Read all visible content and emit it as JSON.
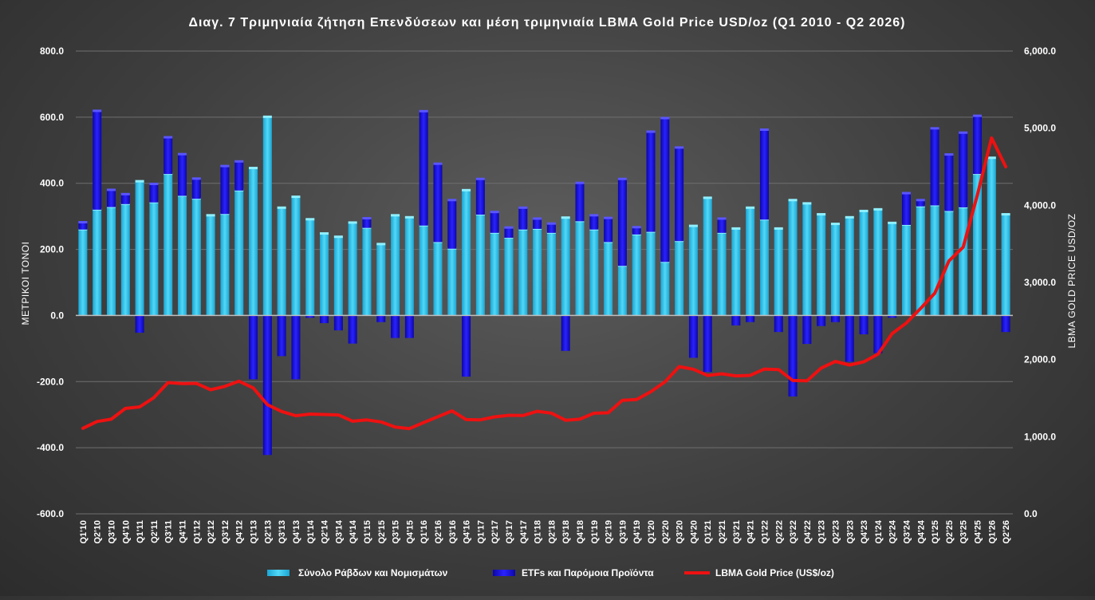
{
  "chart_data": {
    "type": "bar",
    "title": "Διαγ. 7  Τριμηνιαία ζήτηση Επενδύσεων και μέση τριμηνιαία LBMA Gold Price USD/oz (Q1 2010 - Q2 2026)",
    "ylabel": "ΜΕΤΡΙΚΟΙ ΤΟΝΟΙ",
    "y2label": "LBMA GOLD PRICE USD/OZ",
    "ylim": [
      -600,
      800
    ],
    "y2lim": [
      0,
      6000
    ],
    "yticks": [
      "800.0",
      "600.0",
      "400.0",
      "200.0",
      "0.0",
      "-200.0",
      "-400.0",
      "-600.0"
    ],
    "y2ticks": [
      "6,000.0",
      "5,000.0",
      "4,000.0",
      "3,000.0",
      "2,000.0",
      "1,000.0",
      "0.0"
    ],
    "grid": true,
    "legend_position": "bottom",
    "categories": [
      "Q1'10",
      "Q2'10",
      "Q3'10",
      "Q4'10",
      "Q1'11",
      "Q2'11",
      "Q3'11",
      "Q4'11",
      "Q1'12",
      "Q2'12",
      "Q3'12",
      "Q4'12",
      "Q1'13",
      "Q2'13",
      "Q3'13",
      "Q4'13",
      "Q1'14",
      "Q2'14",
      "Q3'14",
      "Q4'14",
      "Q1'15",
      "Q2'15",
      "Q3'15",
      "Q4'15",
      "Q1'16",
      "Q2'16",
      "Q3'16",
      "Q4'16",
      "Q1'17",
      "Q2'17",
      "Q3'17",
      "Q4'17",
      "Q1'18",
      "Q2'18",
      "Q3'18",
      "Q4'18",
      "Q1'19",
      "Q2'19",
      "Q3'19",
      "Q4'19",
      "Q1'20",
      "Q2'20",
      "Q3'20",
      "Q4'20",
      "Q1'21",
      "Q2'21",
      "Q3'21",
      "Q4'21",
      "Q1'22",
      "Q2'22",
      "Q3'22",
      "Q4'22",
      "Q1'23",
      "Q2'23",
      "Q3'23",
      "Q4'23",
      "Q1'24",
      "Q2'24",
      "Q3'24",
      "Q4'24",
      "Q1'25",
      "Q2'25",
      "Q3'25",
      "Q4'25",
      "Q1'26",
      "Q2'26"
    ],
    "series": [
      {
        "name": "Σύνολο Ράβδων και Νομισμάτων",
        "kind": "bar",
        "color": "#35c8ee",
        "values": [
          260,
          320,
          328,
          337,
          405,
          342,
          428,
          362,
          353,
          302,
          307,
          378,
          445,
          600,
          325,
          358,
          290,
          247,
          237,
          280,
          265,
          215,
          302,
          296,
          272,
          222,
          202,
          378,
          305,
          250,
          235,
          260,
          262,
          250,
          295,
          285,
          260,
          222,
          150,
          245,
          253,
          162,
          225,
          270,
          355,
          250,
          262,
          325,
          290,
          262,
          348,
          338,
          305,
          276,
          296,
          315,
          320,
          279,
          274,
          330,
          333,
          316,
          327,
          428,
          476,
          305
        ]
      },
      {
        "name": "ETFs και Παρόμοια Προϊόντα",
        "kind": "bar",
        "color": "#1a12e6",
        "values": [
          21,
          298,
          51,
          29,
          -52,
          55,
          110,
          125,
          60,
          0,
          144,
          87,
          -193,
          -422,
          -123,
          -193,
          -7,
          -23,
          -45,
          -85,
          28,
          -20,
          -68,
          -68,
          345,
          236,
          146,
          -185,
          107,
          62,
          30,
          65,
          30,
          27,
          -107,
          115,
          42,
          72,
          262,
          21,
          302,
          434,
          282,
          -128,
          -171,
          42,
          -30,
          -20,
          271,
          -50,
          -245,
          -86,
          -32,
          -20,
          -140,
          -57,
          -114,
          -7,
          95,
          18,
          232,
          170,
          225,
          175,
          0,
          -50
        ]
      },
      {
        "name": "LBMA Gold Price (US$/oz)",
        "kind": "line",
        "axis": "right",
        "color": "#ee1111",
        "values": [
          1109,
          1197,
          1227,
          1367,
          1386,
          1506,
          1702,
          1688,
          1691,
          1609,
          1652,
          1719,
          1632,
          1415,
          1327,
          1272,
          1293,
          1288,
          1282,
          1201,
          1218,
          1192,
          1124,
          1105,
          1183,
          1259,
          1335,
          1222,
          1219,
          1257,
          1278,
          1275,
          1329,
          1306,
          1213,
          1227,
          1304,
          1310,
          1472,
          1481,
          1583,
          1711,
          1909,
          1874,
          1794,
          1816,
          1789,
          1795,
          1877,
          1870,
          1729,
          1726,
          1890,
          1976,
          1929,
          1971,
          2070,
          2338,
          2474,
          2663,
          2860,
          3280,
          3457,
          4134,
          4873,
          4500
        ]
      }
    ]
  }
}
